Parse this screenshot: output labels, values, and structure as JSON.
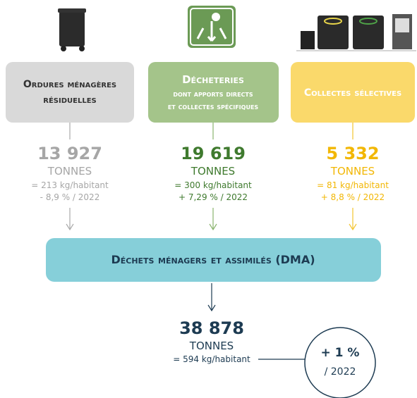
{
  "columns": [
    {
      "title": "Ordures ménagères",
      "title2": "résiduelles",
      "amount": "13 927",
      "unit": "TONNES",
      "per_capita": "= 213 kg/habitant",
      "change": "- 8,9 % / 2022"
    },
    {
      "title": "Décheteries",
      "subtitle": "dont apports directs",
      "subtitle2": "et collectes spécifiques",
      "amount": "19 619",
      "unit": "TONNES",
      "per_capita": "= 300 kg/habitant",
      "change": "+ 7,29 % / 2022"
    },
    {
      "title": "Collectes sélectives",
      "amount": "5 332",
      "unit": "TONNES",
      "per_capita": "= 81 kg/habitant",
      "change": "+ 8,8 % / 2022"
    }
  ],
  "total": {
    "label": "Déchets ménagers et assimilés (DMA)",
    "amount": "38 878",
    "unit": "TONNES",
    "per_capita": "= 594 kg/habitant",
    "change": "+ 1 %",
    "change_ref": "/ 2022"
  }
}
